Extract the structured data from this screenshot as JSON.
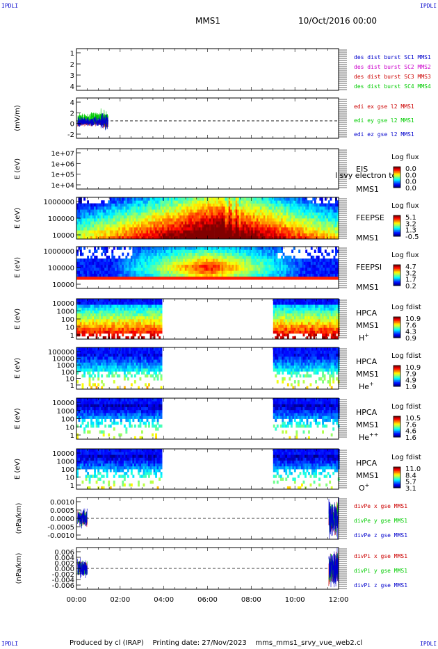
{
  "header": {
    "corner_left": "IPDLI",
    "corner_right": "IPDLI",
    "mission": "MMS1",
    "datetime": "10/Oct/2016 00:00"
  },
  "footer": {
    "produced_by": "Produced by cl (IRAP)",
    "printing_date": "Printing date: 27/Nov/2023",
    "script_name": "mms_mms1_srvy_vue_web2.cl"
  },
  "x_axis": {
    "ticks": [
      "00:00",
      "02:00",
      "04:00",
      "06:00",
      "08:00",
      "10:00",
      "12:00"
    ],
    "range_hours": [
      0,
      12
    ]
  },
  "chart_data": [
    {
      "type": "line",
      "panel": "des_dist_burst",
      "ylabel": "",
      "yticks": [
        "1",
        "2",
        "3",
        "4"
      ],
      "ylim": [
        0.7,
        4.5
      ],
      "series": [
        {
          "name": "des dist burst SC1 MMS1",
          "color": "#0000cc",
          "values": []
        },
        {
          "name": "des dist burst SC2 MMS2",
          "color": "#cc00cc",
          "values": []
        },
        {
          "name": "des dist burst SC3 MMS3",
          "color": "#cc0000",
          "values": []
        },
        {
          "name": "des dist burst SC4 MMS4",
          "color": "#00cc00",
          "values": []
        }
      ]
    },
    {
      "type": "line",
      "panel": "edi_e",
      "ylabel": "(mV/m)",
      "yticks": [
        "4",
        "2",
        "0",
        "-2"
      ],
      "ylim": [
        -3.2,
        4.2
      ],
      "active_hours": [
        0.05,
        1.45
      ],
      "series": [
        {
          "name": "edi ex gse l2 MMS1",
          "color": "#cc0000",
          "amplitude": 1.0
        },
        {
          "name": "edi ey gse l2 MMS1",
          "color": "#00cc00",
          "amplitude": 1.6
        },
        {
          "name": "edi ez gse l2 MMS1",
          "color": "#0000cc",
          "amplitude": 1.4
        }
      ]
    },
    {
      "type": "heatmap",
      "panel": "EIS",
      "ylabel": "E (eV)",
      "yticks": [
        "1e+07",
        "1e+06",
        "1e+05",
        "1e+04"
      ],
      "right_labels": [
        "EIS",
        "MMS1"
      ],
      "overlay_text": "l svy electron to",
      "colorbar": {
        "title": "Log flux",
        "values": [
          "0.0",
          "0.0",
          "0.0",
          "0.0"
        ]
      },
      "data": "empty"
    },
    {
      "type": "heatmap",
      "panel": "FEEPS_E",
      "ylabel": "E (eV)",
      "yticks": [
        "1000000",
        "100000",
        "10000"
      ],
      "right_labels": [
        "FEEPSE",
        "MMS1"
      ],
      "colorbar": {
        "title": "Log flux",
        "values": [
          "5.1",
          "3.2",
          "1.3",
          "-0.5"
        ]
      },
      "coverage_hours": [
        0,
        12
      ]
    },
    {
      "type": "heatmap",
      "panel": "FEEPS_I",
      "ylabel": "E (eV)",
      "yticks": [
        "1000000",
        "100000",
        "10000"
      ],
      "right_labels": [
        "FEEPSI",
        "MMS1"
      ],
      "colorbar": {
        "title": "Log flux",
        "values": [
          "4.7",
          "3.2",
          "1.7",
          "0.2"
        ]
      },
      "coverage_hours": [
        0,
        12
      ]
    },
    {
      "type": "heatmap",
      "panel": "HPCA_H+",
      "ylabel": "E (eV)",
      "yticks": [
        "10000",
        "1000",
        "100",
        "10",
        "1"
      ],
      "right_labels": [
        "HPCA",
        "MMS1"
      ],
      "species": {
        "base": "H",
        "sup": "+"
      },
      "colorbar": {
        "title": "Log fdist",
        "values": [
          "10.9",
          "7.6",
          "4.3",
          "0.9"
        ]
      },
      "coverage_hours": [
        [
          0,
          3.85
        ],
        [
          9.0,
          12
        ]
      ]
    },
    {
      "type": "heatmap",
      "panel": "HPCA_He+",
      "ylabel": "E (eV)",
      "yticks": [
        "100000",
        "10000",
        "1000",
        "100",
        "10",
        "1"
      ],
      "right_labels": [
        "HPCA",
        "MMS1"
      ],
      "species": {
        "base": "He",
        "sup": "+"
      },
      "colorbar": {
        "title": "Log fdist",
        "values": [
          "10.9",
          "7.9",
          "4.9",
          "1.9"
        ]
      },
      "coverage_hours": [
        [
          0,
          3.85
        ],
        [
          9.0,
          12
        ]
      ]
    },
    {
      "type": "heatmap",
      "panel": "HPCA_He++",
      "ylabel": "E (eV)",
      "yticks": [
        "10000",
        "1000",
        "100",
        "10",
        "1"
      ],
      "right_labels": [
        "HPCA",
        "MMS1"
      ],
      "species": {
        "base": "He",
        "sup": "++"
      },
      "colorbar": {
        "title": "Log fdist",
        "values": [
          "10.5",
          "7.6",
          "4.6",
          "1.6"
        ]
      },
      "coverage_hours": [
        [
          0,
          3.85
        ],
        [
          9.0,
          12
        ]
      ]
    },
    {
      "type": "heatmap",
      "panel": "HPCA_O+",
      "ylabel": "E (eV)",
      "yticks": [
        "10000",
        "1000",
        "100",
        "10",
        "1"
      ],
      "right_labels": [
        "HPCA",
        "MMS1"
      ],
      "species": {
        "base": "O",
        "sup": "+"
      },
      "colorbar": {
        "title": "Log fdist",
        "values": [
          "11.0",
          "8.4",
          "5.7",
          "3.1"
        ]
      },
      "coverage_hours": [
        [
          0,
          3.85
        ],
        [
          9.0,
          12
        ]
      ]
    },
    {
      "type": "line",
      "panel": "divPe",
      "ylabel": "(nPa/km)",
      "yticks": [
        "0.0010",
        "0.0005",
        "0.0000",
        "-0.0005",
        "-0.0010"
      ],
      "ylim": [
        -0.0011,
        0.0011
      ],
      "active_hours": [
        [
          0.05,
          0.5
        ],
        [
          11.55,
          12
        ]
      ],
      "series": [
        {
          "name": "divPe x gse MMS1",
          "color": "#cc0000"
        },
        {
          "name": "divPe y gse MMS1",
          "color": "#00cc00"
        },
        {
          "name": "divPe z gse MMS1",
          "color": "#0000cc"
        }
      ]
    },
    {
      "type": "line",
      "panel": "divPi",
      "ylabel": "(nPa/km)",
      "yticks": [
        "0.006",
        "0.004",
        "0.002",
        "0.000",
        "-0.002",
        "-0.004",
        "-0.006"
      ],
      "ylim": [
        -0.0065,
        0.0065
      ],
      "active_hours": [
        [
          0.05,
          0.5
        ],
        [
          11.55,
          12
        ]
      ],
      "series": [
        {
          "name": "divPi x gse MMS1",
          "color": "#cc0000"
        },
        {
          "name": "divPi y gse MMS1",
          "color": "#00cc00"
        },
        {
          "name": "divPi z gse MMS1",
          "color": "#0000cc"
        }
      ]
    }
  ]
}
